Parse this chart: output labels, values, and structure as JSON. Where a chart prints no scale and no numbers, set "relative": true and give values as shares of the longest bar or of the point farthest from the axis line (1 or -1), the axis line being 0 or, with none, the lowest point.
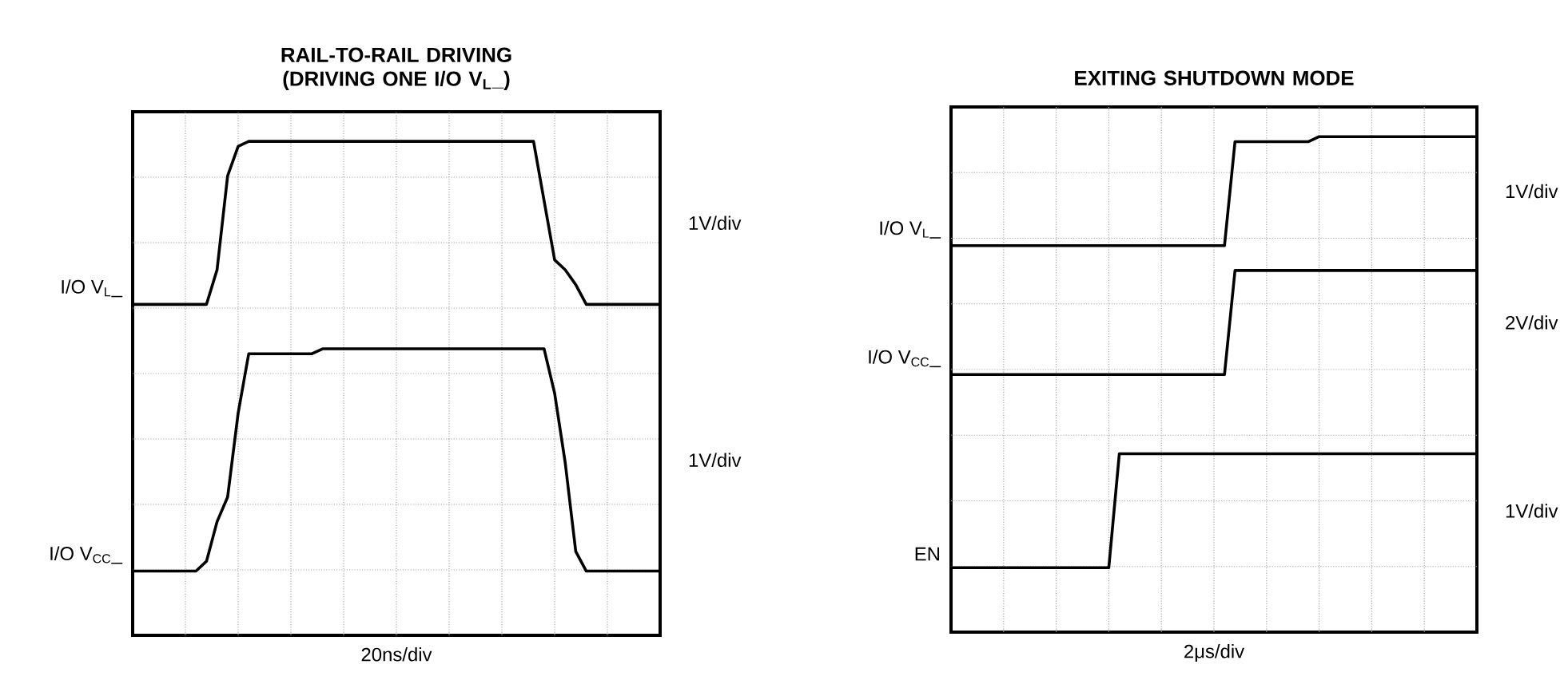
{
  "chart_data": [
    {
      "type": "line",
      "relative": true,
      "grid": true,
      "title": "RAIL-TO-RAIL DRIVING (DRIVING ONE I/O V$_{L}$_)",
      "xlabel": "20ns/div",
      "annotations": [
        "1V/div",
        "1V/div"
      ],
      "categories": [
        null,
        null,
        null,
        null,
        null,
        null,
        null,
        null,
        null,
        null,
        null,
        null,
        null,
        null,
        null,
        null,
        null,
        null,
        null,
        null,
        null,
        null,
        null,
        null,
        null,
        null,
        null,
        null,
        null,
        null,
        null,
        null,
        null,
        null,
        null,
        null,
        null,
        null,
        null,
        null,
        null,
        null,
        null,
        null,
        null,
        null,
        null,
        null,
        null,
        null,
        null
      ],
      "series": [
        {
          "name": "I/O V$_{L}$_",
          "color": "#000000",
          "values": [
            0.67,
            0.67,
            0.67,
            0.67,
            0.67,
            0.67,
            0.67,
            0.67,
            0.74,
            0.93,
            0.99,
            1.0,
            1.0,
            1.0,
            1.0,
            1.0,
            1.0,
            1.0,
            1.0,
            1.0,
            1.0,
            1.0,
            1.0,
            1.0,
            1.0,
            1.0,
            1.0,
            1.0,
            1.0,
            1.0,
            1.0,
            1.0,
            1.0,
            1.0,
            1.0,
            1.0,
            1.0,
            1.0,
            1.0,
            0.88,
            0.76,
            0.74,
            0.71,
            0.67,
            0.67,
            0.67,
            0.67,
            0.67,
            0.67,
            0.67,
            0.67
          ]
        },
        {
          "name": "I/O V$_{CC}$_",
          "color": "#000000",
          "values": [
            0.13,
            0.13,
            0.13,
            0.13,
            0.13,
            0.13,
            0.13,
            0.15,
            0.23,
            0.28,
            0.45,
            0.57,
            0.57,
            0.57,
            0.57,
            0.57,
            0.57,
            0.57,
            0.58,
            0.58,
            0.58,
            0.58,
            0.58,
            0.58,
            0.58,
            0.58,
            0.58,
            0.58,
            0.58,
            0.58,
            0.58,
            0.58,
            0.58,
            0.58,
            0.58,
            0.58,
            0.58,
            0.58,
            0.58,
            0.58,
            0.49,
            0.35,
            0.17,
            0.13,
            0.13,
            0.13,
            0.13,
            0.13,
            0.13,
            0.13,
            0.13
          ]
        }
      ]
    },
    {
      "type": "line",
      "relative": true,
      "grid": true,
      "title": "EXITING SHUTDOWN MODE",
      "xlabel": "2μs/div",
      "annotations": [
        "1V/div",
        "2V/div",
        "1V/div"
      ],
      "categories": [
        null,
        null,
        null,
        null,
        null,
        null,
        null,
        null,
        null,
        null,
        null,
        null,
        null,
        null,
        null,
        null,
        null,
        null,
        null,
        null,
        null,
        null,
        null,
        null,
        null,
        null,
        null,
        null,
        null,
        null,
        null,
        null,
        null,
        null,
        null,
        null,
        null,
        null,
        null,
        null,
        null,
        null,
        null,
        null,
        null,
        null,
        null,
        null,
        null,
        null,
        null
      ],
      "series": [
        {
          "name": "I/O V$_{L}$_",
          "color": "#000000",
          "values": [
            0.78,
            0.78,
            0.78,
            0.78,
            0.78,
            0.78,
            0.78,
            0.78,
            0.78,
            0.78,
            0.78,
            0.78,
            0.78,
            0.78,
            0.78,
            0.78,
            0.78,
            0.78,
            0.78,
            0.78,
            0.78,
            0.78,
            0.78,
            0.78,
            0.78,
            0.78,
            0.78,
            0.99,
            0.99,
            0.99,
            0.99,
            0.99,
            0.99,
            0.99,
            0.99,
            1.0,
            1.0,
            1.0,
            1.0,
            1.0,
            1.0,
            1.0,
            1.0,
            1.0,
            1.0,
            1.0,
            1.0,
            1.0,
            1.0,
            1.0,
            1.0
          ]
        },
        {
          "name": "I/O V$_{CC}$_",
          "color": "#000000",
          "values": [
            0.52,
            0.52,
            0.52,
            0.52,
            0.52,
            0.52,
            0.52,
            0.52,
            0.52,
            0.52,
            0.52,
            0.52,
            0.52,
            0.52,
            0.52,
            0.52,
            0.52,
            0.52,
            0.52,
            0.52,
            0.52,
            0.52,
            0.52,
            0.52,
            0.52,
            0.52,
            0.52,
            0.73,
            0.73,
            0.73,
            0.73,
            0.73,
            0.73,
            0.73,
            0.73,
            0.73,
            0.73,
            0.73,
            0.73,
            0.73,
            0.73,
            0.73,
            0.73,
            0.73,
            0.73,
            0.73,
            0.73,
            0.73,
            0.73,
            0.73,
            0.73
          ]
        },
        {
          "name": "EN",
          "color": "#000000",
          "values": [
            0.13,
            0.13,
            0.13,
            0.13,
            0.13,
            0.13,
            0.13,
            0.13,
            0.13,
            0.13,
            0.13,
            0.13,
            0.13,
            0.13,
            0.13,
            0.13,
            0.36,
            0.36,
            0.36,
            0.36,
            0.36,
            0.36,
            0.36,
            0.36,
            0.36,
            0.36,
            0.36,
            0.36,
            0.36,
            0.36,
            0.36,
            0.36,
            0.36,
            0.36,
            0.36,
            0.36,
            0.36,
            0.36,
            0.36,
            0.36,
            0.36,
            0.36,
            0.36,
            0.36,
            0.36,
            0.36,
            0.36,
            0.36,
            0.36,
            0.36,
            0.36
          ]
        }
      ]
    }
  ]
}
